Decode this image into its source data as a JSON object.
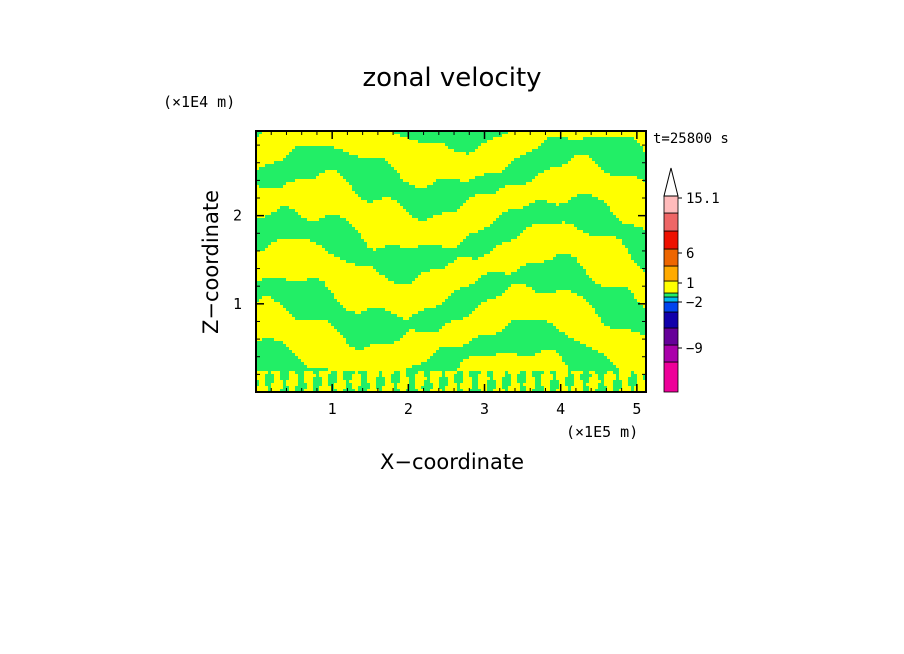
{
  "chart_data": {
    "type": "heatmap",
    "title": "zonal velocity",
    "xlabel": "X−coordinate",
    "ylabel": "Z−coordinate",
    "x_unit": "(×1E5 m)",
    "y_unit": "(×1E4 m)",
    "time_label": "t=25800 s",
    "xlim": [
      0.0,
      5.12
    ],
    "ylim": [
      0.0,
      2.96
    ],
    "x_ticks": [
      "1",
      "2",
      "3",
      "4",
      "5"
    ],
    "y_ticks": [
      "1",
      "2"
    ],
    "field_colors": {
      "positive": "#ffff00",
      "negative": "#22ee66"
    },
    "colorbar": {
      "tick_labels": [
        "15.1",
        "6",
        "1",
        "−2",
        "−9"
      ],
      "tick_values": [
        15.1,
        6,
        1,
        -2,
        -9
      ],
      "colors": [
        "#ee0099",
        "#aa00aa",
        "#660099",
        "#1100aa",
        "#0044ee",
        "#00bbee",
        "#22ee66",
        "#ffff00",
        "#ffaa00",
        "#ee6600",
        "#ee1100",
        "#ee6666",
        "#ffbbbb"
      ],
      "extend_max": true
    }
  }
}
